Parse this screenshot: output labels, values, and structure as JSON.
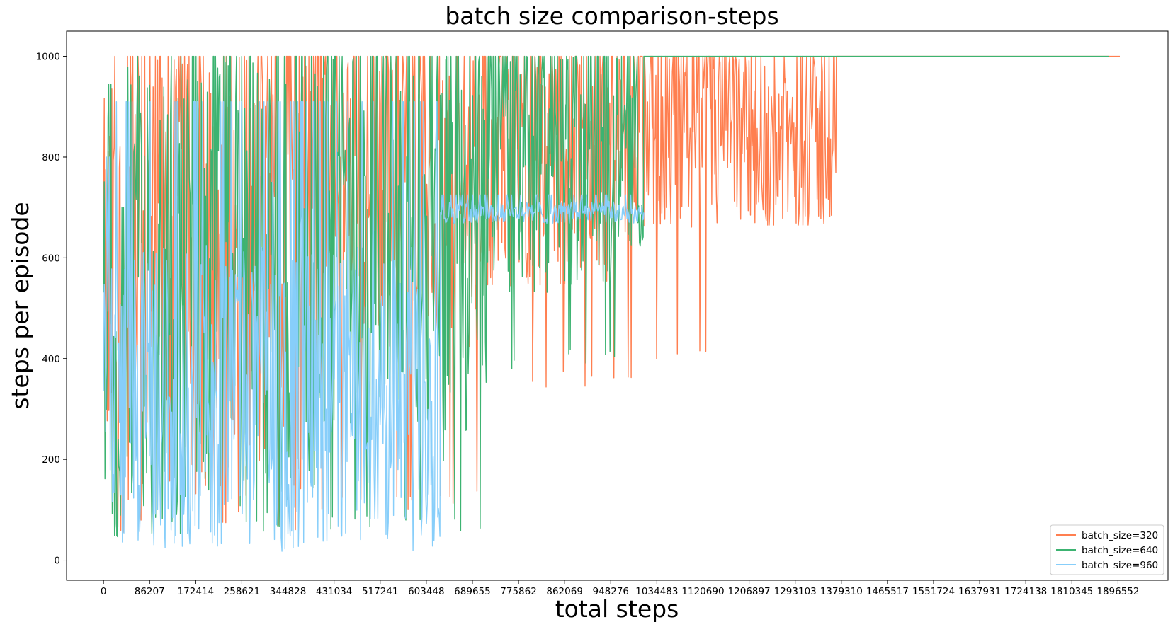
{
  "chart_data": {
    "type": "line",
    "title": "batch size comparison-steps",
    "xlabel": "total steps",
    "ylabel": "steps per episode",
    "xlim": [
      -69000,
      1990000
    ],
    "ylim": [
      -40,
      1050
    ],
    "x_ticks": [
      0,
      86207,
      172414,
      258621,
      344828,
      431034,
      517241,
      603448,
      689655,
      775862,
      862069,
      948276,
      1034483,
      1120690,
      1206897,
      1293103,
      1379310,
      1465517,
      1551724,
      1637931,
      1724138,
      1810345,
      1896552
    ],
    "x_tick_labels": [
      "0",
      "86207",
      "172414",
      "258621",
      "344828",
      "431034",
      "517241",
      "603448",
      "689655",
      "775862",
      "862069",
      "948276",
      "1034483",
      "1120690",
      "1206897",
      "1293103",
      "1379310",
      "1465517",
      "1551724",
      "1637931",
      "1724138",
      "1810345",
      "1896552"
    ],
    "y_ticks": [
      0,
      200,
      400,
      600,
      800,
      1000
    ],
    "y_tick_labels": [
      "0",
      "200",
      "400",
      "600",
      "800",
      "1000"
    ],
    "grid": false,
    "legend_position": "bottom-right",
    "series": [
      {
        "name": "batch_size=320",
        "color": "#FF7F50",
        "x_end": 1900000,
        "segments": [
          {
            "x0": 0,
            "x1": 10000,
            "mean": 500,
            "amp": 420,
            "min": 60,
            "max": 935
          },
          {
            "x0": 10000,
            "x1": 90000,
            "mean": 500,
            "amp": 460,
            "min": 55,
            "max": 1000
          },
          {
            "x0": 90000,
            "x1": 400000,
            "mean": 560,
            "amp": 440,
            "min": 60,
            "max": 1000
          },
          {
            "x0": 400000,
            "x1": 700000,
            "mean": 720,
            "amp": 300,
            "min": 100,
            "max": 1000
          },
          {
            "x0": 700000,
            "x1": 950000,
            "mean": 800,
            "amp": 260,
            "min": 340,
            "max": 1000
          },
          {
            "x0": 950000,
            "x1": 1070000,
            "mean": 850,
            "amp": 200,
            "min": 360,
            "max": 1000
          },
          {
            "x0": 1070000,
            "x1": 1180000,
            "mean": 850,
            "amp": 220,
            "min": 380,
            "max": 1000
          },
          {
            "x0": 1180000,
            "x1": 1370000,
            "mean": 830,
            "amp": 180,
            "min": 665,
            "max": 1000
          },
          {
            "x0": 1370000,
            "x1": 1900000,
            "mean": 1000,
            "amp": 0,
            "min": 1000,
            "max": 1000
          }
        ]
      },
      {
        "name": "batch_size=640",
        "color": "#3CB371",
        "x_end": 1880000,
        "segments": [
          {
            "x0": 0,
            "x1": 15000,
            "mean": 550,
            "amp": 400,
            "min": 100,
            "max": 945
          },
          {
            "x0": 15000,
            "x1": 40000,
            "mean": 300,
            "amp": 280,
            "min": 15,
            "max": 700
          },
          {
            "x0": 40000,
            "x1": 400000,
            "mean": 520,
            "amp": 470,
            "min": 45,
            "max": 1000
          },
          {
            "x0": 400000,
            "x1": 630000,
            "mean": 650,
            "amp": 380,
            "min": 60,
            "max": 1000
          },
          {
            "x0": 630000,
            "x1": 720000,
            "mean": 600,
            "amp": 420,
            "min": 45,
            "max": 1000
          },
          {
            "x0": 720000,
            "x1": 960000,
            "mean": 780,
            "amp": 250,
            "min": 380,
            "max": 1000
          },
          {
            "x0": 960000,
            "x1": 1010000,
            "mean": 820,
            "amp": 200,
            "min": 600,
            "max": 1000
          },
          {
            "x0": 1010000,
            "x1": 1880000,
            "mean": 1000,
            "amp": 0,
            "min": 1000,
            "max": 1000
          }
        ]
      },
      {
        "name": "batch_size=960",
        "color": "#87CEFA",
        "x_end": 1010000,
        "segments": [
          {
            "x0": 0,
            "x1": 20000,
            "mean": 420,
            "amp": 330,
            "min": 110,
            "max": 800
          },
          {
            "x0": 20000,
            "x1": 630000,
            "mean": 330,
            "amp": 300,
            "min": 15,
            "max": 910
          },
          {
            "x0": 630000,
            "x1": 1010000,
            "mean": 690,
            "amp": 22,
            "min": 665,
            "max": 725
          }
        ]
      }
    ]
  }
}
